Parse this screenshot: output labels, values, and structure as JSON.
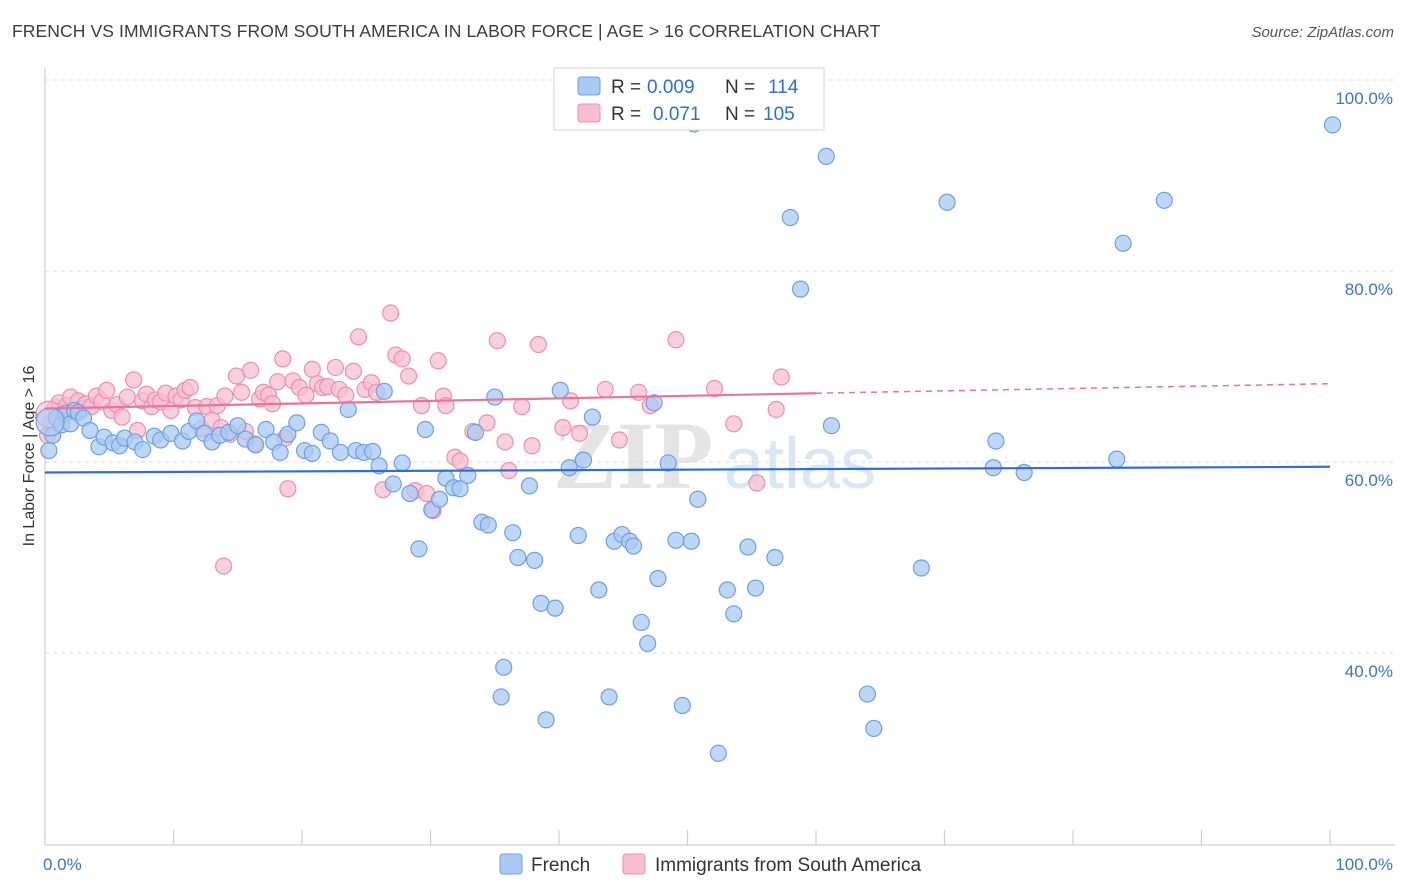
{
  "title": "FRENCH VS IMMIGRANTS FROM SOUTH AMERICA IN LABOR FORCE | AGE > 16 CORRELATION CHART",
  "source": "Source: ZipAtlas.com",
  "watermark": {
    "zip": "ZIP",
    "atlas": "atlas"
  },
  "colors": {
    "french_fill": "#aac9f3",
    "french_stroke": "#6f9fe0",
    "french_line": "#2f6fcf",
    "sa_fill": "#f7bfd1",
    "sa_stroke": "#ec8fad",
    "sa_line": "#e8749a",
    "grid": "#d9d9d9",
    "axis_label": "#3b74c9"
  },
  "legend_box": {
    "rows": [
      {
        "r_label": "R =",
        "r_value": "0.009",
        "n_label": "N =",
        "n_value": "114"
      },
      {
        "r_label": "R =",
        "r_value": "0.071",
        "n_label": "N =",
        "n_value": "105"
      }
    ]
  },
  "bottom_legend": [
    "French",
    "Immigrants from South America"
  ],
  "chart_data": {
    "type": "scatter",
    "title": "FRENCH VS IMMIGRANTS FROM SOUTH AMERICA IN LABOR FORCE | AGE > 16 CORRELATION CHART",
    "xlabel": "",
    "ylabel": "In Labor Force | Age > 16",
    "xlim": [
      0,
      100
    ],
    "ylim": [
      20,
      102
    ],
    "x_tick_labels": [
      "0.0%",
      "100.0%"
    ],
    "y_ticks": [
      {
        "value": 40,
        "label": "40.0%"
      },
      {
        "value": 60,
        "label": "60.0%"
      },
      {
        "value": 80,
        "label": "80.0%"
      },
      {
        "value": 100,
        "label": "100.0%"
      }
    ],
    "grid": "horizontal dashed",
    "legend_position": "bottom-center",
    "series": [
      {
        "name": "French",
        "r": 0.009,
        "n": 114,
        "trend": {
          "x": [
            0,
            100
          ],
          "y": [
            58.9,
            59.5
          ]
        },
        "points": [
          [
            0.3,
            61.2
          ],
          [
            0.6,
            62.8
          ],
          [
            0.9,
            64.6
          ],
          [
            1.3,
            63.9
          ],
          [
            1.6,
            65.1
          ],
          [
            2.0,
            64.0
          ],
          [
            2.3,
            65.4
          ],
          [
            2.6,
            65.2
          ],
          [
            3.0,
            64.6
          ],
          [
            3.5,
            63.3
          ],
          [
            4.2,
            61.6
          ],
          [
            4.6,
            62.6
          ],
          [
            5.3,
            62.0
          ],
          [
            5.8,
            61.7
          ],
          [
            6.2,
            62.5
          ],
          [
            7.0,
            62.1
          ],
          [
            7.6,
            61.3
          ],
          [
            8.5,
            62.7
          ],
          [
            9.0,
            62.3
          ],
          [
            9.8,
            63.0
          ],
          [
            10.7,
            62.2
          ],
          [
            11.2,
            63.2
          ],
          [
            11.8,
            64.3
          ],
          [
            12.4,
            63.0
          ],
          [
            13.0,
            62.1
          ],
          [
            13.6,
            62.8
          ],
          [
            14.3,
            63.1
          ],
          [
            15.0,
            63.8
          ],
          [
            15.6,
            62.4
          ],
          [
            16.4,
            61.8
          ],
          [
            17.2,
            63.4
          ],
          [
            17.8,
            62.1
          ],
          [
            18.3,
            61.0
          ],
          [
            18.9,
            62.9
          ],
          [
            19.6,
            64.1
          ],
          [
            20.2,
            61.2
          ],
          [
            20.8,
            60.9
          ],
          [
            21.5,
            63.1
          ],
          [
            22.2,
            62.2
          ],
          [
            23.0,
            61.0
          ],
          [
            23.6,
            65.5
          ],
          [
            24.2,
            61.2
          ],
          [
            24.8,
            61.0
          ],
          [
            25.5,
            61.1
          ],
          [
            26.0,
            59.6
          ],
          [
            26.4,
            67.4
          ],
          [
            27.1,
            57.7
          ],
          [
            27.8,
            59.9
          ],
          [
            28.4,
            56.7
          ],
          [
            29.1,
            50.9
          ],
          [
            29.6,
            63.4
          ],
          [
            30.1,
            55.0
          ],
          [
            30.7,
            56.1
          ],
          [
            31.2,
            58.3
          ],
          [
            31.8,
            57.3
          ],
          [
            32.3,
            57.2
          ],
          [
            32.9,
            58.6
          ],
          [
            33.5,
            63.1
          ],
          [
            34.0,
            53.7
          ],
          [
            34.5,
            53.4
          ],
          [
            35.0,
            66.8
          ],
          [
            35.7,
            38.5
          ],
          [
            35.5,
            35.4
          ],
          [
            36.4,
            52.6
          ],
          [
            36.8,
            50.0
          ],
          [
            37.7,
            57.5
          ],
          [
            38.1,
            49.7
          ],
          [
            38.6,
            45.2
          ],
          [
            39.0,
            33.0
          ],
          [
            39.7,
            44.7
          ],
          [
            40.1,
            67.5
          ],
          [
            40.8,
            59.4
          ],
          [
            41.5,
            52.3
          ],
          [
            41.9,
            60.2
          ],
          [
            42.6,
            64.7
          ],
          [
            43.1,
            46.6
          ],
          [
            43.9,
            35.4
          ],
          [
            44.3,
            51.7
          ],
          [
            44.9,
            52.4
          ],
          [
            45.5,
            51.7
          ],
          [
            45.8,
            51.2
          ],
          [
            46.4,
            43.2
          ],
          [
            46.9,
            41.0
          ],
          [
            47.4,
            66.2
          ],
          [
            47.7,
            47.8
          ],
          [
            48.5,
            59.9
          ],
          [
            49.1,
            51.8
          ],
          [
            49.6,
            34.5
          ],
          [
            50.3,
            51.7
          ],
          [
            50.8,
            56.1
          ],
          [
            50.5,
            95.4
          ],
          [
            52.4,
            29.5
          ],
          [
            53.1,
            46.6
          ],
          [
            53.6,
            44.1
          ],
          [
            54.7,
            51.1
          ],
          [
            55.3,
            46.8
          ],
          [
            56.8,
            50.0
          ],
          [
            58.0,
            85.6
          ],
          [
            58.8,
            78.1
          ],
          [
            60.8,
            92.0
          ],
          [
            61.2,
            63.8
          ],
          [
            64.0,
            35.7
          ],
          [
            64.5,
            32.1
          ],
          [
            68.2,
            48.9
          ],
          [
            70.2,
            87.2
          ],
          [
            73.8,
            59.4
          ],
          [
            74.0,
            62.2
          ],
          [
            76.2,
            58.9
          ],
          [
            83.4,
            60.3
          ],
          [
            83.9,
            82.9
          ],
          [
            87.1,
            87.4
          ],
          [
            100.2,
            95.3
          ]
        ]
      },
      {
        "name": "Immigrants from South America",
        "r": 0.071,
        "n": 105,
        "trend": {
          "x": [
            0,
            60
          ],
          "y": [
            65.6,
            67.2
          ]
        },
        "trend_dashed": {
          "x": [
            60,
            100
          ],
          "y": [
            67.2,
            68.2
          ]
        },
        "points": [
          [
            0.2,
            62.8
          ],
          [
            0.5,
            64.1
          ],
          [
            0.8,
            65.7
          ],
          [
            1.1,
            66.2
          ],
          [
            1.4,
            65.1
          ],
          [
            1.7,
            65.9
          ],
          [
            2.0,
            66.8
          ],
          [
            2.3,
            65.2
          ],
          [
            2.6,
            66.4
          ],
          [
            2.9,
            65.6
          ],
          [
            3.2,
            66.1
          ],
          [
            3.6,
            65.8
          ],
          [
            4.0,
            66.9
          ],
          [
            4.4,
            66.3
          ],
          [
            4.8,
            67.5
          ],
          [
            5.2,
            65.4
          ],
          [
            5.6,
            66.0
          ],
          [
            6.0,
            64.7
          ],
          [
            6.4,
            66.8
          ],
          [
            6.9,
            68.6
          ],
          [
            7.2,
            63.3
          ],
          [
            7.6,
            66.4
          ],
          [
            7.9,
            67.1
          ],
          [
            8.3,
            65.8
          ],
          [
            8.6,
            66.5
          ],
          [
            9.0,
            66.3
          ],
          [
            9.4,
            67.2
          ],
          [
            9.8,
            65.4
          ],
          [
            10.2,
            66.9
          ],
          [
            10.6,
            66.5
          ],
          [
            10.9,
            67.5
          ],
          [
            11.3,
            67.8
          ],
          [
            11.7,
            65.7
          ],
          [
            12.2,
            63.5
          ],
          [
            12.6,
            65.8
          ],
          [
            13.0,
            64.4
          ],
          [
            13.4,
            65.9
          ],
          [
            13.7,
            63.6
          ],
          [
            14.0,
            66.9
          ],
          [
            14.4,
            62.9
          ],
          [
            14.9,
            69.0
          ],
          [
            15.3,
            67.3
          ],
          [
            15.6,
            63.2
          ],
          [
            16.0,
            69.6
          ],
          [
            16.3,
            61.9
          ],
          [
            16.7,
            66.6
          ],
          [
            17.0,
            67.3
          ],
          [
            17.4,
            67.0
          ],
          [
            17.7,
            66.1
          ],
          [
            18.1,
            68.4
          ],
          [
            18.5,
            70.8
          ],
          [
            18.7,
            62.5
          ],
          [
            18.9,
            57.2
          ],
          [
            19.3,
            68.5
          ],
          [
            19.8,
            67.8
          ],
          [
            20.3,
            67.0
          ],
          [
            20.8,
            69.7
          ],
          [
            21.2,
            68.2
          ],
          [
            21.6,
            67.8
          ],
          [
            22.0,
            67.9
          ],
          [
            22.6,
            69.9
          ],
          [
            22.9,
            67.6
          ],
          [
            23.4,
            67.0
          ],
          [
            24.0,
            69.5
          ],
          [
            24.4,
            73.1
          ],
          [
            24.9,
            67.6
          ],
          [
            25.4,
            68.3
          ],
          [
            25.8,
            67.3
          ],
          [
            26.3,
            57.1
          ],
          [
            26.9,
            75.6
          ],
          [
            27.3,
            71.2
          ],
          [
            27.8,
            70.8
          ],
          [
            28.3,
            69.0
          ],
          [
            28.8,
            57.0
          ],
          [
            29.3,
            65.9
          ],
          [
            29.7,
            56.7
          ],
          [
            30.2,
            54.9
          ],
          [
            30.6,
            70.6
          ],
          [
            31.0,
            66.9
          ],
          [
            31.2,
            65.9
          ],
          [
            31.9,
            60.5
          ],
          [
            32.3,
            60.1
          ],
          [
            33.3,
            63.2
          ],
          [
            34.4,
            64.1
          ],
          [
            35.2,
            72.7
          ],
          [
            35.8,
            62.1
          ],
          [
            36.1,
            59.1
          ],
          [
            37.1,
            65.8
          ],
          [
            37.9,
            61.7
          ],
          [
            38.4,
            72.3
          ],
          [
            13.9,
            49.1
          ],
          [
            40.3,
            63.6
          ],
          [
            40.9,
            66.4
          ],
          [
            41.6,
            63.0
          ],
          [
            43.6,
            67.6
          ],
          [
            44.7,
            62.3
          ],
          [
            46.2,
            67.3
          ],
          [
            47.1,
            65.9
          ],
          [
            49.1,
            72.8
          ],
          [
            52.1,
            67.7
          ],
          [
            53.6,
            64.0
          ],
          [
            55.4,
            57.8
          ],
          [
            56.9,
            65.5
          ],
          [
            57.3,
            68.9
          ]
        ]
      }
    ]
  }
}
